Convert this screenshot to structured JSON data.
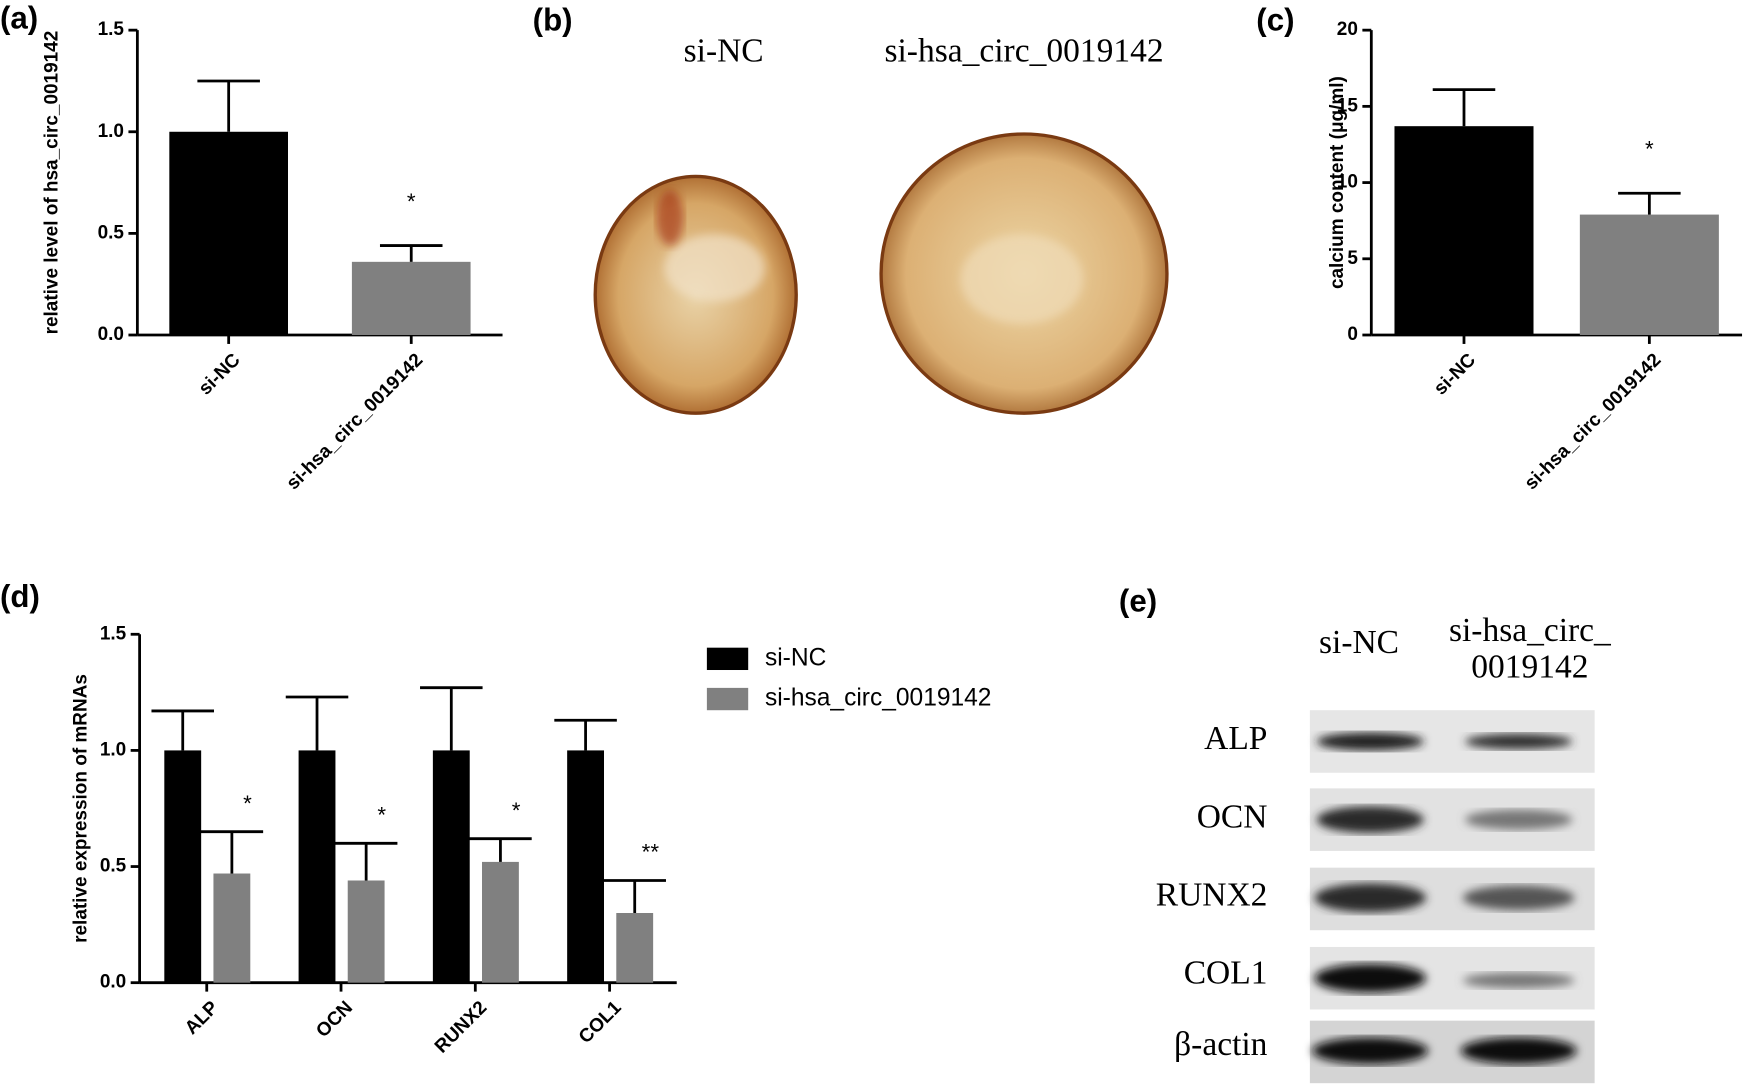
{
  "chart_data": [
    {
      "type": "bar",
      "panel_label": "(a)",
      "ylabel": "relative level of hsa_circ_0019142",
      "categories": [
        "si-NC",
        "si-hsa_circ_0019142"
      ],
      "values": [
        1.0,
        0.36
      ],
      "errors": [
        0.25,
        0.08
      ],
      "colors": [
        "#000000",
        "#808080"
      ],
      "annotations": [
        null,
        "*"
      ],
      "ylim": [
        0,
        1.5
      ],
      "yticks": [
        {
          "value": 0,
          "label": "0.0"
        },
        0.5,
        {
          "value": 1,
          "label": "1.0"
        },
        1.5
      ]
    },
    {
      "type": "bar",
      "panel_label": "(c)",
      "ylabel": "calcium content (μg/ml)",
      "categories": [
        "si-NC",
        "si-hsa_circ_0019142"
      ],
      "values": [
        13.7,
        7.9
      ],
      "errors": [
        2.4,
        1.4
      ],
      "colors": [
        "#000000",
        "#808080"
      ],
      "annotations": [
        null,
        "*"
      ],
      "ylim": [
        0,
        20
      ],
      "yticks": [
        0,
        5,
        10,
        15,
        20
      ]
    },
    {
      "type": "grouped_bar",
      "panel_label": "(d)",
      "ylabel": "relative expression of mRNAs",
      "categories": [
        "ALP",
        "OCN",
        "RUNX2",
        "COL1"
      ],
      "series": [
        {
          "name": "si-NC",
          "color": "#000000",
          "values": [
            1.0,
            1.0,
            1.0,
            1.0
          ],
          "errors": [
            0.17,
            0.23,
            0.27,
            0.13
          ]
        },
        {
          "name": "si-hsa_circ_0019142",
          "color": "#808080",
          "values": [
            0.47,
            0.44,
            0.52,
            0.3
          ],
          "errors": [
            0.18,
            0.16,
            0.1,
            0.14
          ],
          "annotations": [
            "*",
            "*",
            "*",
            "**"
          ]
        }
      ],
      "ylim": [
        0,
        1.5
      ],
      "yticks": [
        {
          "value": 0,
          "label": "0.0"
        },
        0.5,
        {
          "value": 1,
          "label": "1.0"
        },
        1.5
      ]
    }
  ],
  "images": [
    {
      "panel_label": "(b)",
      "columns": [
        "si-NC",
        "si-hsa_circ_0019142"
      ]
    },
    {
      "panel_label": "(e)",
      "columns": [
        "si-NC",
        [
          "si-hsa_circ_",
          "0019142"
        ]
      ],
      "rows": [
        "ALP",
        "OCN",
        "RUNX2",
        "COL1",
        "β-actin"
      ]
    }
  ]
}
